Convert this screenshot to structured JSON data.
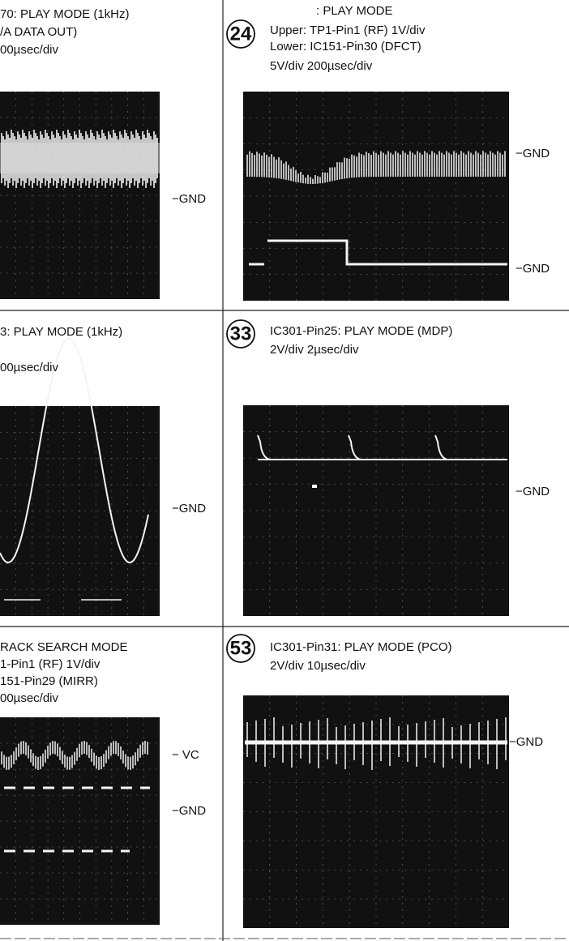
{
  "panels": [
    {
      "lines": [
        "70: PLAY MODE (1kHz)",
        "/A DATA OUT)",
        "00µsec/div"
      ],
      "markers": [
        "−GND"
      ]
    },
    {
      "number": "24",
      "lines": [
        ": PLAY MODE",
        "Upper: TP1-Pin1 (RF) 1V/div",
        "Lower: IC151-Pin30 (DFCT)",
        "5V/div   200µsec/div"
      ],
      "markers": [
        "−GND",
        "−GND"
      ]
    },
    {
      "lines": [
        "3: PLAY MODE (1kHz)",
        "00µsec/div"
      ],
      "markers": [
        "−GND"
      ]
    },
    {
      "number": "33",
      "lines": [
        "IC301-Pin25: PLAY MODE (MDP)",
        "2V/div   2µsec/div"
      ],
      "markers": [
        "−GND"
      ]
    },
    {
      "lines": [
        "RACK SEARCH MODE",
        "1-Pin1 (RF) 1V/div",
        "151-Pin29 (MIRR)",
        "00µsec/div"
      ],
      "markers": [
        "− VC",
        "−GND"
      ]
    },
    {
      "number": "53",
      "lines": [
        "IC301-Pin31: PLAY MODE (PCO)",
        "2V/div   10µsec/div"
      ],
      "markers": [
        "−GND"
      ]
    }
  ]
}
